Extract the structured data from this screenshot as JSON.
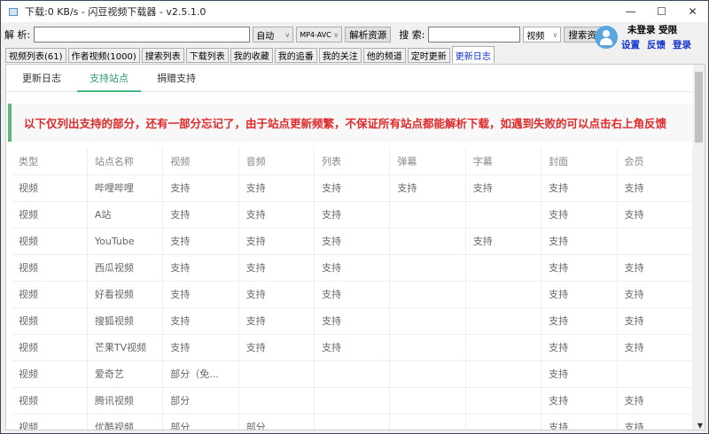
{
  "window": {
    "title": "下载:0 KB/s - 闪豆视频下载器 - v2.5.1.0",
    "controls": [
      "—",
      "☐",
      "✕"
    ]
  },
  "toolbar": {
    "parse_label": "解 析:",
    "parse_value": "",
    "mode": "自动",
    "format": "MP4-AVC",
    "parse_button": "解析资源",
    "search_label": "搜 索:",
    "search_value": "",
    "search_type": "视频",
    "search_button": "搜索资源"
  },
  "user": {
    "status": "未登录 受限",
    "links": [
      "设置",
      "反馈",
      "登录"
    ]
  },
  "tabs": [
    {
      "label": "视频列表(61)"
    },
    {
      "label": "作者视频(1000)"
    },
    {
      "label": "搜索列表"
    },
    {
      "label": "下载列表"
    },
    {
      "label": "我的收藏"
    },
    {
      "label": "我的追番"
    },
    {
      "label": "我的关注"
    },
    {
      "label": "他的频道"
    },
    {
      "label": "定时更新"
    },
    {
      "label": "更新日志",
      "active": true
    }
  ],
  "subtabs": [
    {
      "label": "更新日志"
    },
    {
      "label": "支持站点",
      "active": true
    },
    {
      "label": "捐赠支持"
    }
  ],
  "notice": "以下仅列出支持的部分，还有一部分忘记了，由于站点更新频繁，不保证所有站点都能解析下载，如遇到失败的可以点击右上角反馈",
  "table": {
    "headers": [
      "类型",
      "站点名称",
      "视频",
      "音频",
      "列表",
      "弹幕",
      "字幕",
      "封面",
      "会员"
    ],
    "rows": [
      [
        "视频",
        "哔哩哔哩",
        "支持",
        "支持",
        "支持",
        "支持",
        "支持",
        "支持",
        "支持"
      ],
      [
        "视频",
        "A站",
        "支持",
        "支持",
        "支持",
        "",
        "",
        "支持",
        "支持"
      ],
      [
        "视频",
        "YouTube",
        "支持",
        "支持",
        "支持",
        "",
        "支持",
        "支持",
        ""
      ],
      [
        "视频",
        "西瓜视频",
        "支持",
        "支持",
        "支持",
        "",
        "",
        "支持",
        "支持"
      ],
      [
        "视频",
        "好看视频",
        "支持",
        "支持",
        "支持",
        "",
        "",
        "支持",
        "支持"
      ],
      [
        "视频",
        "搜狐视频",
        "支持",
        "支持",
        "支持",
        "",
        "",
        "支持",
        "支持"
      ],
      [
        "视频",
        "芒果TV视频",
        "支持",
        "支持",
        "支持",
        "",
        "",
        "支持",
        "支持"
      ],
      [
        "视频",
        "爱奇艺",
        "部分（免...",
        "",
        "",
        "",
        "",
        "支持",
        ""
      ],
      [
        "视频",
        "腾讯视频",
        "部分",
        "",
        "",
        "",
        "",
        "支持",
        "支持"
      ],
      [
        "视频",
        "优酷视频",
        "部分",
        "部分",
        "",
        "",
        "",
        "支持",
        "支持"
      ]
    ]
  },
  "colors": {
    "accent": "#42b983",
    "notice": "#e02a2a",
    "link": "#1030d0"
  }
}
